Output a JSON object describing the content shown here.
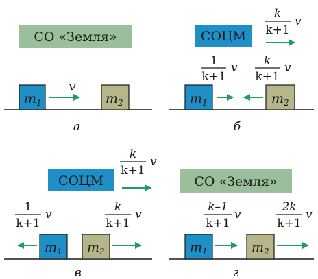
{
  "colors": {
    "blue": "#1f8fc8",
    "olive": "#b7b58a",
    "green_label": "#9bbf9b",
    "arrow": "#1aa05a",
    "ground": "#1a1a1a"
  },
  "panels": {
    "a": {
      "frame_label": "СО «Земля»",
      "caption": "а",
      "mass1": "m",
      "mass1_sub": "1",
      "mass2": "m",
      "mass2_sub": "2",
      "v1": "v"
    },
    "b": {
      "frame_label": "СОЦМ",
      "frame_v_num": "k",
      "frame_v_den": "k+1",
      "frame_v": "v",
      "caption": "б",
      "mass1": "m",
      "mass1_sub": "1",
      "mass2": "m",
      "mass2_sub": "2",
      "v1_num": "1",
      "v1_den": "k+1",
      "v1": "v",
      "v2_num": "k",
      "v2_den": "k+1",
      "v2": "v"
    },
    "c": {
      "frame_label": "СОЦМ",
      "frame_v_num": "k",
      "frame_v_den": "k+1",
      "frame_v": "v",
      "caption": "в",
      "mass1": "m",
      "mass1_sub": "1",
      "mass2": "m",
      "mass2_sub": "2",
      "v1_num": "1",
      "v1_den": "k+1",
      "v1": "v",
      "v2_num": "k",
      "v2_den": "k+1",
      "v2": "v"
    },
    "d": {
      "frame_label": "СО «Земля»",
      "caption": "г",
      "mass1": "m",
      "mass1_sub": "1",
      "mass2": "m",
      "mass2_sub": "2",
      "v1_num": "k–1",
      "v1_den": "k+1",
      "v1": "v",
      "v2_num": "2k",
      "v2_den": "k+1",
      "v2": "v"
    }
  }
}
